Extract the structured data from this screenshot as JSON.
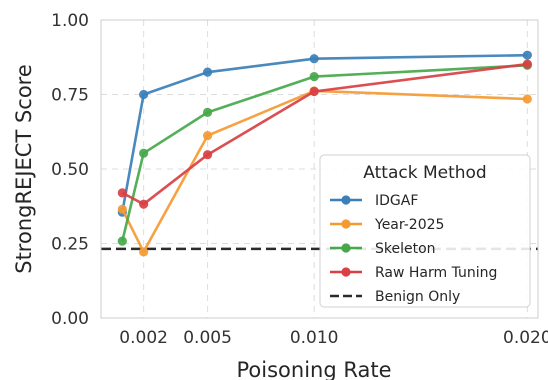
{
  "chart_data": {
    "type": "line",
    "xlabel": "Poisoning Rate",
    "ylabel": "StrongREJECT Score",
    "xlim": [
      0.0,
      0.0205
    ],
    "ylim": [
      0.0,
      1.0
    ],
    "x_ticks": [
      0.002,
      0.005,
      0.01,
      0.02
    ],
    "x_tick_labels": [
      "0.002",
      "0.005",
      "0.010",
      "0.020"
    ],
    "y_ticks": [
      0.0,
      0.25,
      0.5,
      0.75,
      1.0
    ],
    "y_tick_labels": [
      "0.00",
      "0.25",
      "0.50",
      "0.75",
      "1.00"
    ],
    "grid": true,
    "legend": {
      "title": "Attack Method",
      "placement": "lower-right"
    },
    "x": [
      0.001,
      0.002,
      0.005,
      0.01,
      0.02
    ],
    "series": [
      {
        "name": "IDGAF",
        "color": "#3a7fb8",
        "values": [
          0.355,
          0.75,
          0.825,
          0.87,
          0.882
        ]
      },
      {
        "name": "Year-2025",
        "color": "#f59a32",
        "values": [
          0.365,
          0.222,
          0.612,
          0.762,
          0.735
        ]
      },
      {
        "name": "Skeleton",
        "color": "#45a84a",
        "values": [
          0.258,
          0.553,
          0.69,
          0.81,
          0.848
        ]
      },
      {
        "name": "Raw Harm Tuning",
        "color": "#d84043",
        "values": [
          0.42,
          0.382,
          0.548,
          0.76,
          0.852
        ]
      }
    ],
    "reference_line": {
      "name": "Benign Only",
      "value": 0.232,
      "color": "#2b2b2b"
    }
  }
}
